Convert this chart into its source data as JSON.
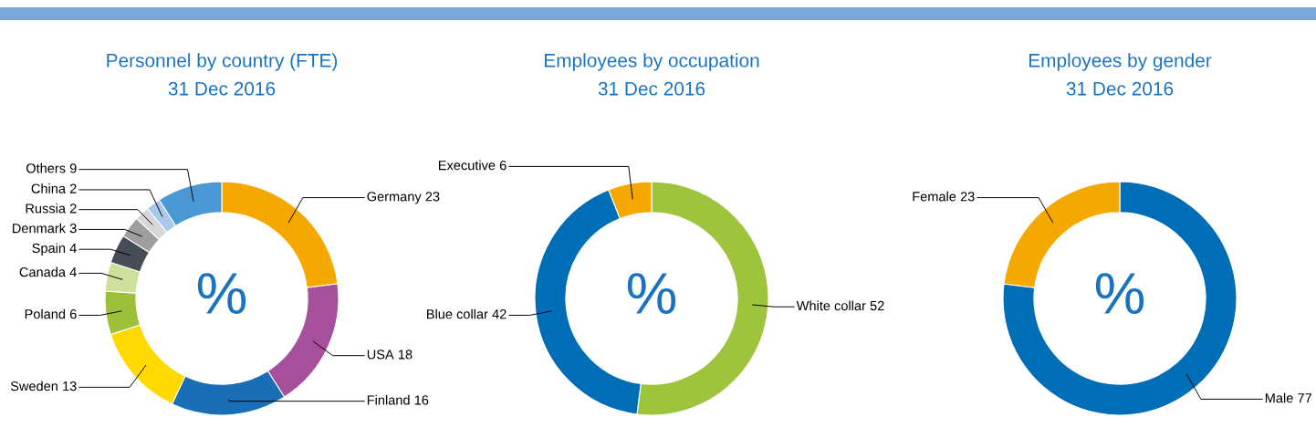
{
  "chart_data": [
    {
      "type": "donut",
      "title": "Personnel by country (FTE)",
      "subtitle": "31 Dec 2016",
      "categories": [
        "Germany",
        "USA",
        "Finland",
        "Sweden",
        "Poland",
        "Canada",
        "Spain",
        "Denmark",
        "Russia",
        "China",
        "Others"
      ],
      "values": [
        23,
        18,
        16,
        13,
        6,
        4,
        4,
        3,
        2,
        2,
        9
      ],
      "colors": [
        "#f5a800",
        "#a64f9a",
        "#1a6eb5",
        "#ffd900",
        "#9dc03a",
        "#cfe09a",
        "#454e57",
        "#9e9e9e",
        "#d6d6d6",
        "#a7c8ea",
        "#4a98d4"
      ],
      "data_labels": true,
      "annotations": [
        "%"
      ]
    },
    {
      "type": "donut",
      "title": "Employees by occupation",
      "subtitle": "31 Dec 2016",
      "categories": [
        "White collar",
        "Blue collar",
        "Executive"
      ],
      "values": [
        52,
        42,
        6
      ],
      "colors": [
        "#9dc43c",
        "#006eb7",
        "#f5a800"
      ],
      "data_labels": true,
      "annotations": [
        "%"
      ]
    },
    {
      "type": "donut",
      "title": "Employees by gender",
      "subtitle": "31 Dec 2016",
      "categories": [
        "Male",
        "Female"
      ],
      "values": [
        77,
        23
      ],
      "colors": [
        "#006eb7",
        "#f5a800"
      ],
      "data_labels": true,
      "annotations": [
        "%"
      ]
    }
  ]
}
